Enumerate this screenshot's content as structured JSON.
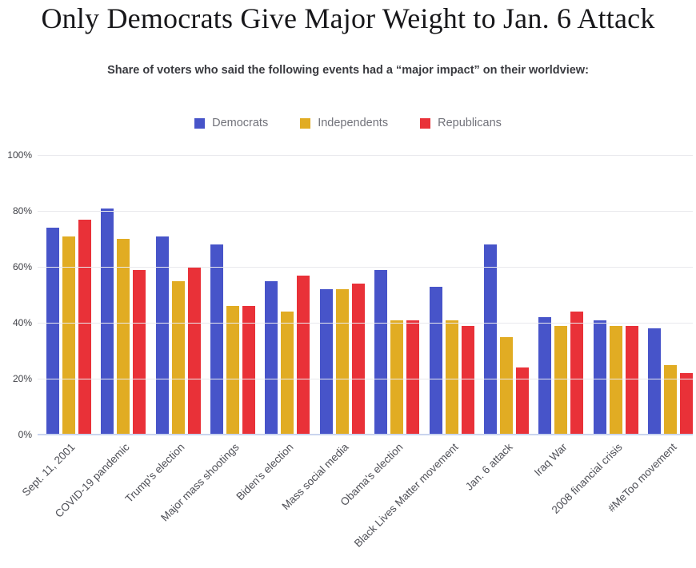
{
  "header": {
    "title": "Only Democrats Give Major Weight to Jan. 6 Attack",
    "subtitle": "Share of voters who said the following events had a “major impact” on their worldview:"
  },
  "chart_data": {
    "type": "bar",
    "title": "Only Democrats Give Major Weight to Jan. 6 Attack",
    "subtitle": "Share of voters who said the following events had a “major impact” on their worldview:",
    "categories": [
      "Sept. 11, 2001",
      "COVID-19 pandemic",
      "Trump's election",
      "Major mass shootings",
      "Biden's election",
      "Mass social media",
      "Obama's election",
      "Black Lives Matter movement",
      "Jan. 6 attack",
      "Iraq War",
      "2008 financial crisis",
      "#MeToo movement"
    ],
    "series": [
      {
        "name": "Democrats",
        "color": "#4754C9",
        "values": [
          74,
          81,
          71,
          68,
          55,
          52,
          59,
          53,
          68,
          42,
          41,
          38
        ]
      },
      {
        "name": "Independents",
        "color": "#E1AC23",
        "values": [
          71,
          70,
          55,
          46,
          44,
          52,
          41,
          41,
          35,
          39,
          39,
          25
        ]
      },
      {
        "name": "Republicans",
        "color": "#E93138",
        "values": [
          77,
          59,
          60,
          46,
          57,
          54,
          41,
          39,
          24,
          44,
          39,
          22
        ]
      }
    ],
    "xlabel": "",
    "ylabel": "",
    "ylim": [
      0,
      100
    ],
    "yticks": [
      {
        "label": "100%",
        "value": 100
      },
      {
        "label": "80%",
        "value": 80
      },
      {
        "label": "60%",
        "value": 60
      },
      {
        "label": "40%",
        "value": 40
      },
      {
        "label": "20%",
        "value": 20
      },
      {
        "label": "0%",
        "value": 0
      }
    ],
    "grid": true,
    "legend_position": "top",
    "gridline_color": "#E9E9ED",
    "baseline_color": "#C9D4EE",
    "x_tick_rotation_deg": -45
  }
}
